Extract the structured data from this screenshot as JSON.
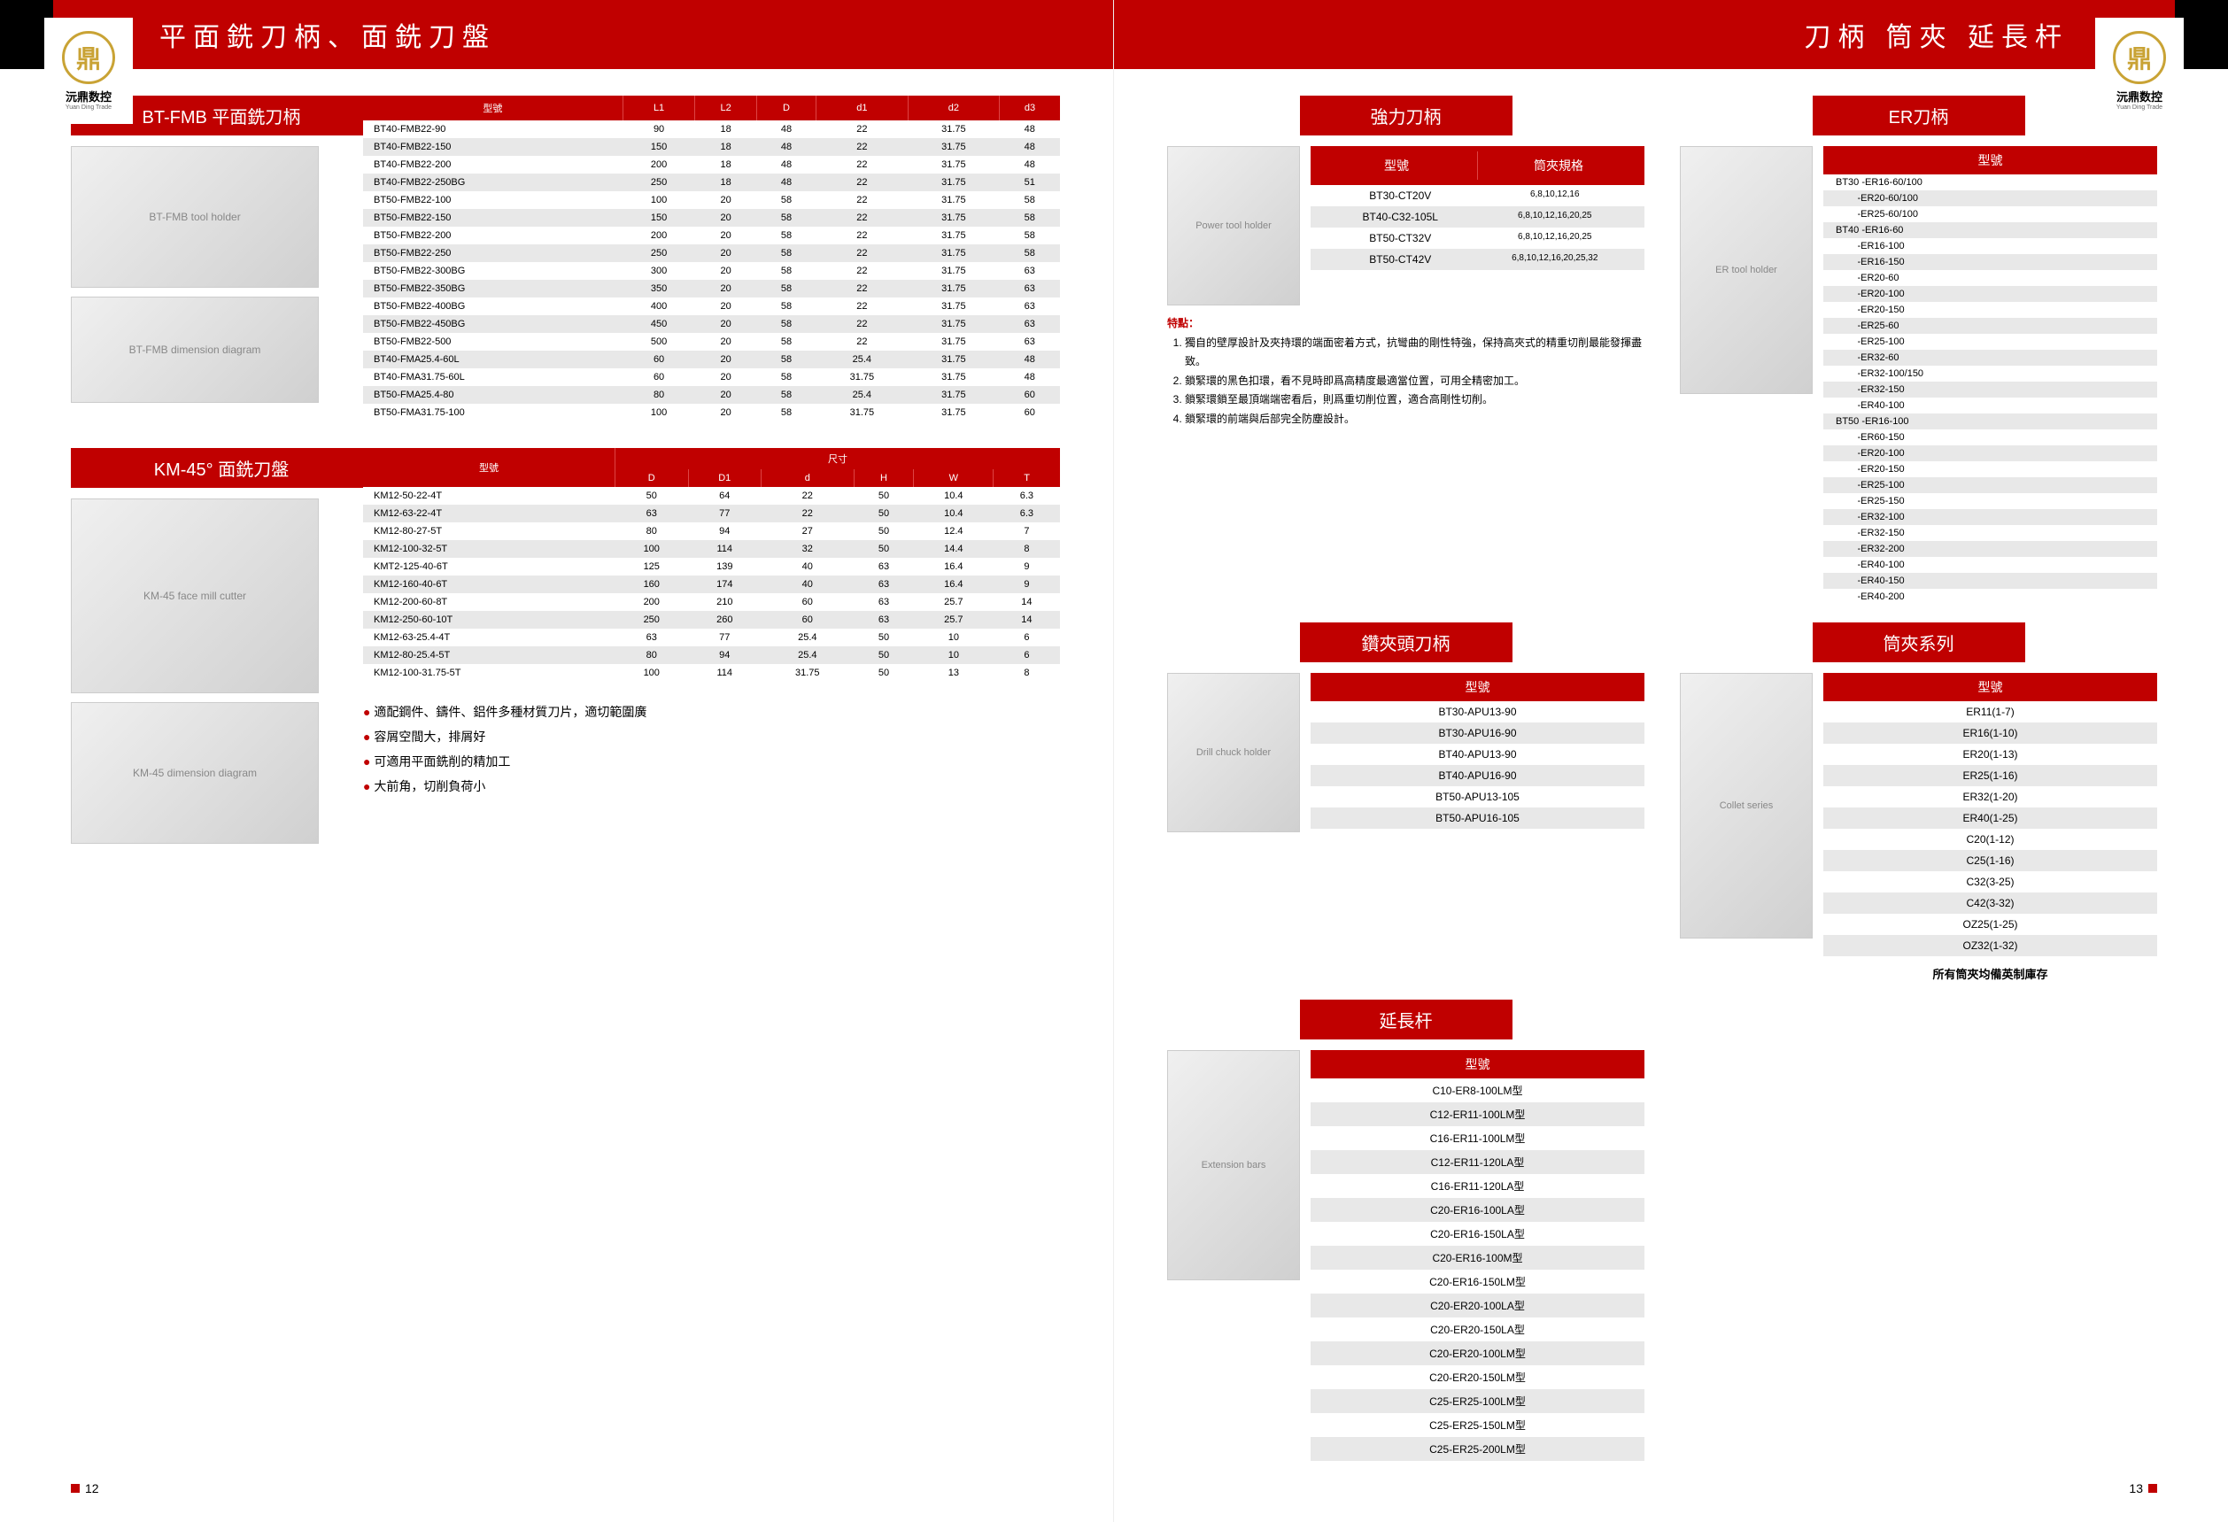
{
  "logo": {
    "brand": "沅鼎数控",
    "brand_en": "Yuan Ding Trade",
    "glyph": "鼎"
  },
  "left_page": {
    "header_title": "平面銑刀柄、面銑刀盤",
    "page_number": "12",
    "section1": {
      "title": "BT-FMB 平面銑刀柄",
      "img_alt": "BT-FMB tool holder",
      "diagram_alt": "BT-FMB dimension diagram",
      "table": {
        "columns": [
          "型號",
          "L1",
          "L2",
          "D",
          "d1",
          "d2",
          "d3"
        ],
        "rows": [
          [
            "BT40-FMB22-90",
            "90",
            "18",
            "48",
            "22",
            "31.75",
            "48"
          ],
          [
            "BT40-FMB22-150",
            "150",
            "18",
            "48",
            "22",
            "31.75",
            "48"
          ],
          [
            "BT40-FMB22-200",
            "200",
            "18",
            "48",
            "22",
            "31.75",
            "48"
          ],
          [
            "BT40-FMB22-250BG",
            "250",
            "18",
            "48",
            "22",
            "31.75",
            "51"
          ],
          [
            "BT50-FMB22-100",
            "100",
            "20",
            "58",
            "22",
            "31.75",
            "58"
          ],
          [
            "BT50-FMB22-150",
            "150",
            "20",
            "58",
            "22",
            "31.75",
            "58"
          ],
          [
            "BT50-FMB22-200",
            "200",
            "20",
            "58",
            "22",
            "31.75",
            "58"
          ],
          [
            "BT50-FMB22-250",
            "250",
            "20",
            "58",
            "22",
            "31.75",
            "58"
          ],
          [
            "BT50-FMB22-300BG",
            "300",
            "20",
            "58",
            "22",
            "31.75",
            "63"
          ],
          [
            "BT50-FMB22-350BG",
            "350",
            "20",
            "58",
            "22",
            "31.75",
            "63"
          ],
          [
            "BT50-FMB22-400BG",
            "400",
            "20",
            "58",
            "22",
            "31.75",
            "63"
          ],
          [
            "BT50-FMB22-450BG",
            "450",
            "20",
            "58",
            "22",
            "31.75",
            "63"
          ],
          [
            "BT50-FMB22-500",
            "500",
            "20",
            "58",
            "22",
            "31.75",
            "63"
          ],
          [
            "BT40-FMA25.4-60L",
            "60",
            "20",
            "58",
            "25.4",
            "31.75",
            "48"
          ],
          [
            "BT40-FMA31.75-60L",
            "60",
            "20",
            "58",
            "31.75",
            "31.75",
            "48"
          ],
          [
            "BT50-FMA25.4-80",
            "80",
            "20",
            "58",
            "25.4",
            "31.75",
            "60"
          ],
          [
            "BT50-FMA31.75-100",
            "100",
            "20",
            "58",
            "31.75",
            "31.75",
            "60"
          ]
        ]
      }
    },
    "section2": {
      "title": "KM-45° 面銑刀盤",
      "img_alt": "KM-45 face mill cutter",
      "diagram_alt": "KM-45 dimension diagram",
      "table": {
        "columns_top": [
          "型號",
          "尺寸"
        ],
        "columns_sub": [
          "D",
          "D1",
          "d",
          "H",
          "W",
          "T"
        ],
        "rows": [
          [
            "KM12-50-22-4T",
            "50",
            "64",
            "22",
            "50",
            "10.4",
            "6.3"
          ],
          [
            "KM12-63-22-4T",
            "63",
            "77",
            "22",
            "50",
            "10.4",
            "6.3"
          ],
          [
            "KM12-80-27-5T",
            "80",
            "94",
            "27",
            "50",
            "12.4",
            "7"
          ],
          [
            "KM12-100-32-5T",
            "100",
            "114",
            "32",
            "50",
            "14.4",
            "8"
          ],
          [
            "KMT2-125-40-6T",
            "125",
            "139",
            "40",
            "63",
            "16.4",
            "9"
          ],
          [
            "KM12-160-40-6T",
            "160",
            "174",
            "40",
            "63",
            "16.4",
            "9"
          ],
          [
            "KM12-200-60-8T",
            "200",
            "210",
            "60",
            "63",
            "25.7",
            "14"
          ],
          [
            "KM12-250-60-10T",
            "250",
            "260",
            "60",
            "63",
            "25.7",
            "14"
          ],
          [
            "KM12-63-25.4-4T",
            "63",
            "77",
            "25.4",
            "50",
            "10",
            "6"
          ],
          [
            "KM12-80-25.4-5T",
            "80",
            "94",
            "25.4",
            "50",
            "10",
            "6"
          ],
          [
            "KM12-100-31.75-5T",
            "100",
            "114",
            "31.75",
            "50",
            "13",
            "8"
          ]
        ]
      },
      "bullets": [
        "適配鋼件、鑄件、鋁件多種材質刀片，適切範圍廣",
        "容屑空間大，排屑好",
        "可適用平面銑削的精加工",
        "大前角，切削負荷小"
      ]
    }
  },
  "right_page": {
    "header_title": "刀柄  筒夾  延長杆",
    "page_number": "13",
    "section_power": {
      "title": "強力刀柄",
      "img_alt": "Power tool holder",
      "table": {
        "columns": [
          "型號",
          "筒夾規格"
        ],
        "rows": [
          [
            "BT30-CT20V",
            "6,8,10,12,16"
          ],
          [
            "BT40-C32-105L",
            "6,8,10,12,16,20,25"
          ],
          [
            "BT50-CT32V",
            "6,8,10,12,16,20,25"
          ],
          [
            "BT50-CT42V",
            "6,8,10,12,16,20,25,32"
          ]
        ]
      },
      "notes_title": "特點：",
      "notes": [
        "獨自的壁厚設計及夾持環的端面密着方式，抗彎曲的剛性特強，保持高夾式的精重切削最能發揮盡致。",
        "鎖緊環的黑色扣環，看不見時即爲高精度最適當位置，可用全精密加工。",
        "鎖緊環鎖至最頂端端密看后，則爲重切削位置，適合高剛性切削。",
        "鎖緊環的前端與后部完全防塵設計。"
      ]
    },
    "section_er": {
      "title": "ER刀柄",
      "img_alt": "ER tool holder",
      "header": "型號",
      "rows": [
        "BT30 -ER16-60/100",
        "        -ER20-60/100",
        "        -ER25-60/100",
        "BT40 -ER16-60",
        "        -ER16-100",
        "        -ER16-150",
        "        -ER20-60",
        "        -ER20-100",
        "        -ER20-150",
        "        -ER25-60",
        "        -ER25-100",
        "        -ER32-60",
        "        -ER32-100/150",
        "        -ER32-150",
        "        -ER40-100",
        "BT50 -ER16-100",
        "        -ER60-150",
        "        -ER20-100",
        "        -ER20-150",
        "        -ER25-100",
        "        -ER25-150",
        "        -ER32-100",
        "        -ER32-150",
        "        -ER32-200",
        "        -ER40-100",
        "        -ER40-150",
        "        -ER40-200"
      ]
    },
    "section_chuck": {
      "title": "鑽夾頭刀柄",
      "img_alt": "Drill chuck holder",
      "header": "型號",
      "rows": [
        "BT30-APU13-90",
        "BT30-APU16-90",
        "BT40-APU13-90",
        "BT40-APU16-90",
        "BT50-APU13-105",
        "BT50-APU16-105"
      ]
    },
    "section_collet": {
      "title": "筒夾系列",
      "img_alt": "Collet series",
      "header": "型號",
      "rows": [
        "ER11(1-7)",
        "ER16(1-10)",
        "ER20(1-13)",
        "ER25(1-16)",
        "ER32(1-20)",
        "ER40(1-25)",
        "C20(1-12)",
        "C25(1-16)",
        "C32(3-25)",
        "C42(3-32)",
        "OZ25(1-25)",
        "OZ32(1-32)"
      ],
      "note": "所有筒夾均備英制庫存"
    },
    "section_ext": {
      "title": "延長杆",
      "img_alt": "Extension bars",
      "header": "型號",
      "rows": [
        "C10-ER8-100LM型",
        "C12-ER11-100LM型",
        "C16-ER11-100LM型",
        "C12-ER11-120LA型",
        "C16-ER11-120LA型",
        "C20-ER16-100LA型",
        "C20-ER16-150LA型",
        "C20-ER16-100M型",
        "C20-ER16-150LM型",
        "C20-ER20-100LA型",
        "C20-ER20-150LA型",
        "C20-ER20-100LM型",
        "C20-ER20-150LM型",
        "C25-ER25-100LM型",
        "C25-ER25-150LM型",
        "C25-ER25-200LM型"
      ]
    }
  },
  "colors": {
    "red": "#c00000",
    "stripe": "#e8e8e8",
    "gold": "#c9a335"
  }
}
